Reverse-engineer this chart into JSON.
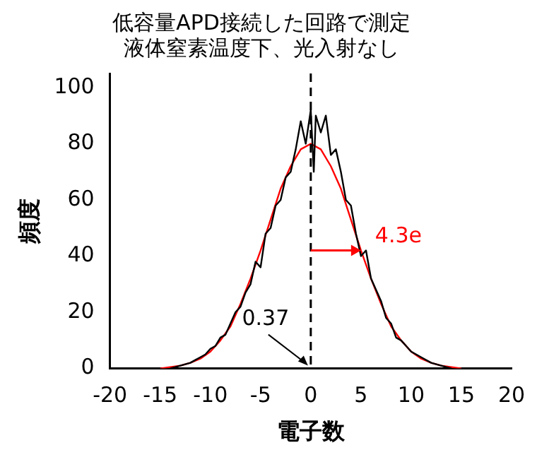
{
  "chart_data": {
    "type": "line",
    "title": [
      "低容量APD接続した回路で測定",
      "液体窒素温度下、光入射なし"
    ],
    "xlabel": "電子数",
    "ylabel": "頻度",
    "xlim": [
      -20,
      20
    ],
    "xticks": [
      -20,
      -15,
      -10,
      -5,
      0,
      5,
      10,
      15,
      20
    ],
    "ylim": [
      0,
      105
    ],
    "yticks": [
      0,
      20,
      40,
      60,
      80,
      100
    ],
    "grid": false,
    "legend": false,
    "marker": "none",
    "series": [
      {
        "color": "#000000",
        "x": [
          -14,
          -13,
          -12,
          -11.5,
          -11,
          -10.5,
          -10,
          -9.5,
          -9,
          -8.5,
          -8,
          -7.5,
          -7,
          -6.5,
          -6,
          -5.5,
          -5,
          -4.5,
          -4,
          -3.5,
          -3,
          -2.5,
          -2,
          -1.5,
          -1,
          -0.5,
          0,
          0.3,
          0.5,
          1,
          1.5,
          2,
          2.5,
          3,
          3.5,
          4,
          4.5,
          5,
          5.5,
          6,
          6.5,
          7,
          7.5,
          8,
          8.5,
          9,
          9.5,
          10,
          10.5,
          11,
          12,
          13,
          14
        ],
        "values": [
          0,
          1,
          2,
          3,
          4,
          5,
          7,
          8,
          11,
          12,
          16,
          20,
          22,
          27,
          30,
          38,
          36,
          48,
          50,
          58,
          60,
          68,
          70,
          78,
          88,
          80,
          92,
          70,
          90,
          84,
          90,
          76,
          78,
          70,
          60,
          58,
          48,
          40,
          42,
          32,
          28,
          24,
          18,
          16,
          11,
          10,
          8,
          6,
          5,
          4,
          2,
          1,
          0
        ]
      },
      {
        "color": "#ff0000",
        "x": [
          -15,
          -14,
          -13,
          -12,
          -11,
          -10,
          -9,
          -8,
          -7,
          -6,
          -5,
          -4,
          -3,
          -2,
          -1,
          0,
          1,
          2,
          3,
          4,
          5,
          6,
          7,
          8,
          9,
          10,
          11,
          12,
          13,
          14,
          15
        ],
        "values": [
          0,
          0.5,
          1,
          2,
          3.5,
          6,
          10,
          15,
          23,
          32,
          42,
          53,
          64,
          72,
          78,
          80,
          78,
          72,
          64,
          53,
          42,
          32,
          23,
          15,
          10,
          6,
          3.5,
          2,
          1,
          0.5,
          0
        ]
      }
    ],
    "ref_lines": [
      {
        "axis": "x",
        "value": 0,
        "color": "#000000",
        "line_style": "dashed"
      }
    ],
    "annotations": [
      {
        "text": "4.3e",
        "x": 5,
        "y": 42
      },
      {
        "text": "0.37",
        "x": 0,
        "y": 0
      }
    ]
  }
}
